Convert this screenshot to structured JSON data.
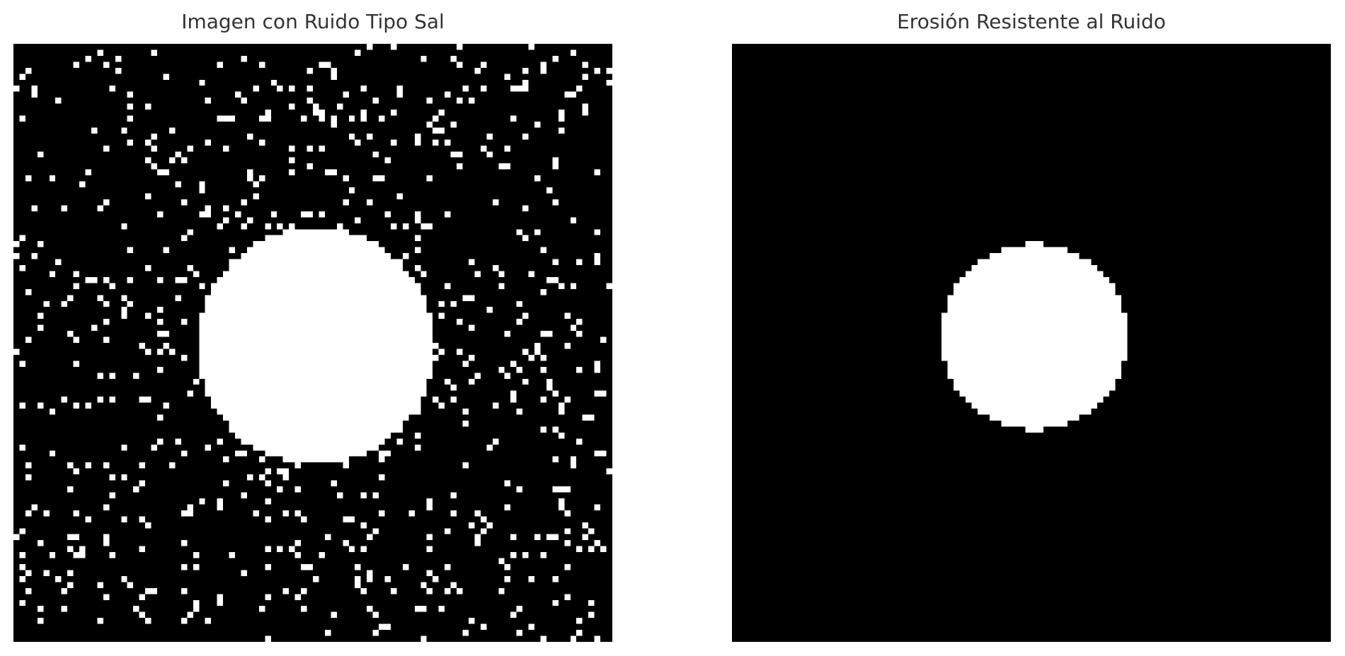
{
  "panels": [
    {
      "title": "Imagen con Ruido Tipo Sal",
      "image": "binary-image-salt-noise-with-white-disk"
    },
    {
      "title": "Erosión Resistente al Ruido",
      "image": "binary-image-eroded-white-disk"
    }
  ],
  "colors": {
    "background": "#000000",
    "foreground": "#ffffff",
    "title": "#333333"
  }
}
